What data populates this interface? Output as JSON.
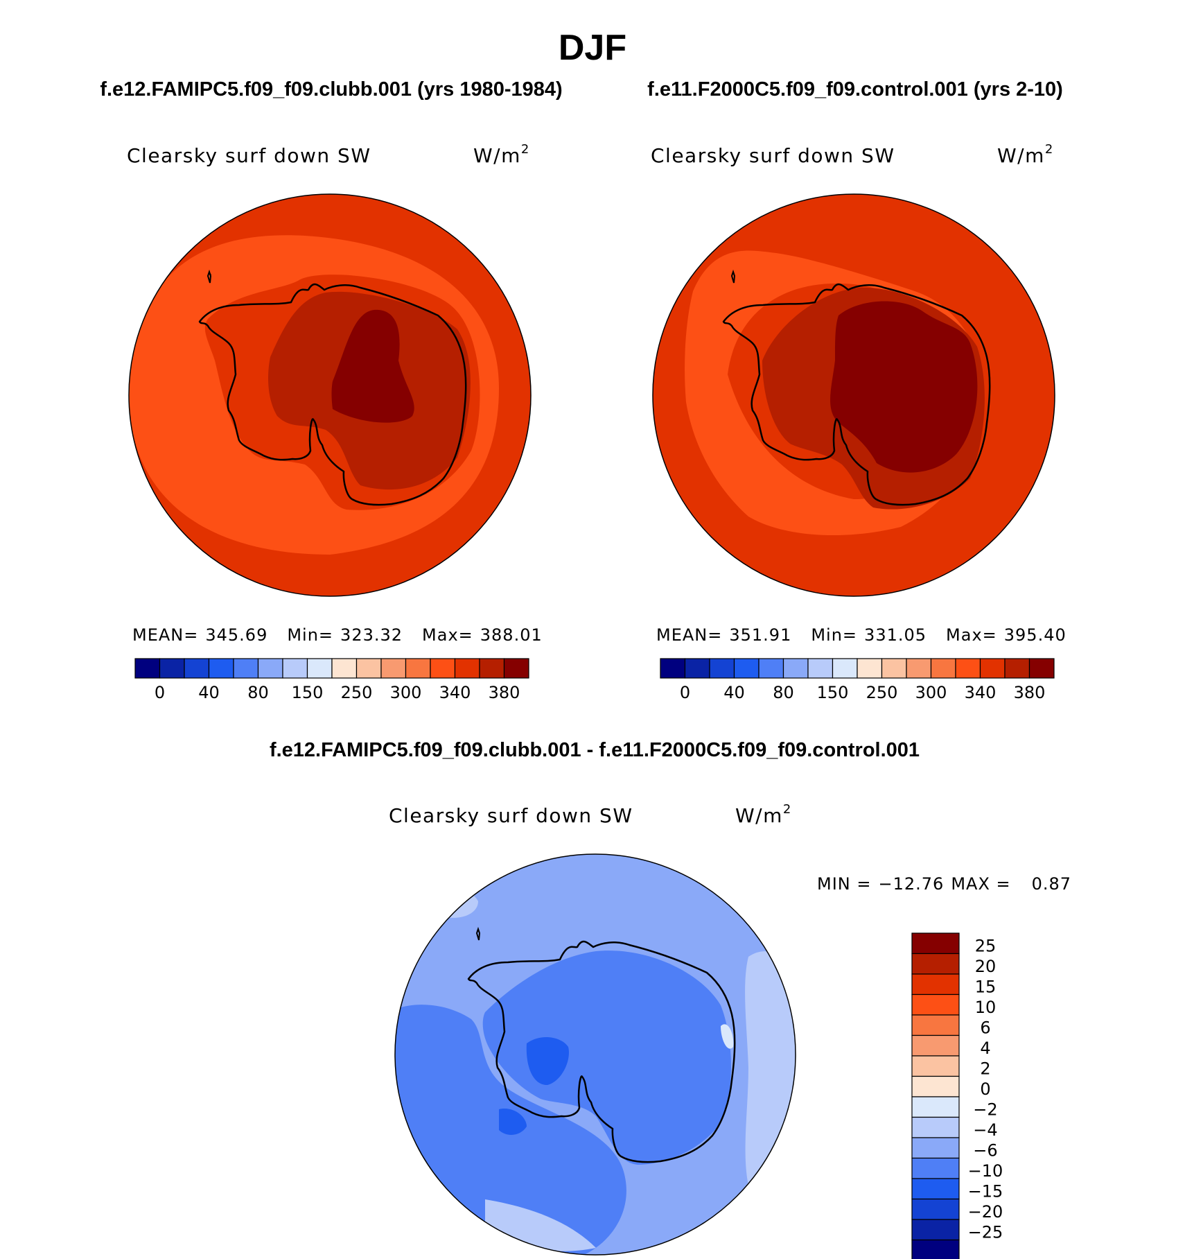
{
  "title": "DJF",
  "panels": [
    {
      "id": "case",
      "heading": "f.e12.FAMIPC5.f09_f09.clubb.001 (yrs 1980-1984)",
      "variable": "Clearsky surf down SW",
      "units": "W/m",
      "units_superscript": "2",
      "stats": {
        "mean_label": "MEAN=",
        "mean": "345.69",
        "min_label": "Min=",
        "min": "323.32",
        "max_label": "Max=",
        "max": "388.01"
      }
    },
    {
      "id": "control",
      "heading": "f.e11.F2000C5.f09_f09.control.001 (yrs 2-10)",
      "variable": "Clearsky surf down SW",
      "units": "W/m",
      "units_superscript": "2",
      "stats": {
        "mean_label": "MEAN=",
        "mean": "351.91",
        "min_label": "Min=",
        "min": "331.05",
        "max_label": "Max=",
        "max": "395.40"
      }
    }
  ],
  "abs_colorbar": {
    "colors": [
      "#00007f",
      "#0a23a5",
      "#1443d3",
      "#1e5cf0",
      "#4f7ff6",
      "#8aa9f8",
      "#b8cbfa",
      "#dae8fb",
      "#fde5d2",
      "#fbc3a2",
      "#f89a70",
      "#f87640",
      "#fd5015",
      "#e23200",
      "#b51f00",
      "#850000"
    ],
    "labels": [
      "0",
      "40",
      "80",
      "150",
      "250",
      "300",
      "340",
      "380"
    ]
  },
  "diff_panel": {
    "heading": "f.e12.FAMIPC5.f09_f09.clubb.001 - f.e11.F2000C5.f09_f09.control.001",
    "variable": "Clearsky surf down SW",
    "units": "W/m",
    "units_superscript": "2",
    "minmax": {
      "min_label": "MIN =",
      "min": "−12.76",
      "max_label": "MAX =",
      "max": "0.87"
    }
  },
  "diff_colorbar": {
    "colors_top_to_bottom": [
      "#850000",
      "#b51f00",
      "#e23200",
      "#fd5015",
      "#f87640",
      "#f89a70",
      "#fbc3a2",
      "#fde5d2",
      "#dae8fb",
      "#b8cbfa",
      "#8aa9f8",
      "#4f7ff6",
      "#1e5cf0",
      "#1443d3",
      "#0a23a5",
      "#00007f"
    ],
    "labels": [
      "25",
      "20",
      "15",
      "10",
      "6",
      "4",
      "2",
      "0",
      "−2",
      "−4",
      "−6",
      "−10",
      "−15",
      "−20",
      "−25"
    ]
  },
  "map_colors": {
    "case_fill": "#fd5015",
    "case_outer": "#e23200",
    "case_coast": "#e23200",
    "case_plateau": "#b51f00",
    "case_dome": "#850000",
    "control_fill": "#e23200",
    "control_band": "#fd5015",
    "control_plateau": "#b51f00",
    "control_dome": "#850000",
    "diff_fill": "#8aa9f8",
    "diff_ocean": "#4f7ff6",
    "diff_light": "#b8cbfa",
    "diff_lightest": "#dae8fb",
    "diff_dark": "#1e5cf0",
    "coastline": "#000000"
  }
}
